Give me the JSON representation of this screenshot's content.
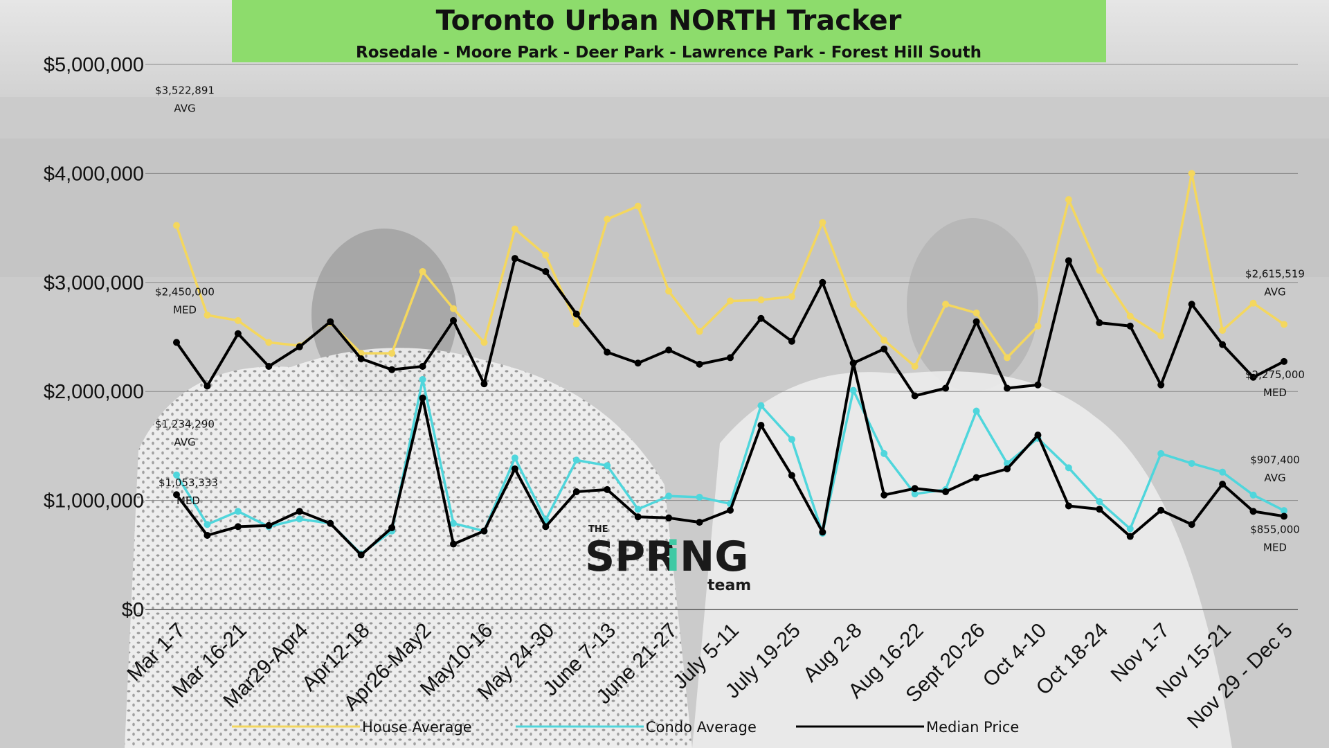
{
  "colors": {
    "house": "#f4d75e",
    "condo": "#4fd6dc",
    "median": "#000000",
    "title_bg": "#8ddc6c",
    "logo_accent": "#3fc9a4"
  },
  "logo": {
    "the": "THE",
    "spring_left": "SPR",
    "spring_i": "i",
    "spring_right": "NG",
    "team": "team"
  },
  "chart_data": {
    "type": "line",
    "title": "Toronto Urban NORTH Tracker",
    "subtitle": "Rosedale - Moore Park - Deer Park - Lawrence Park - Forest Hill South",
    "ylim": [
      0,
      5000000
    ],
    "yticks": [
      0,
      1000000,
      2000000,
      3000000,
      4000000,
      5000000
    ],
    "ytick_labels": [
      "$0",
      "$1,000,000",
      "$2,000,000",
      "$3,000,000",
      "$4,000,000",
      "$5,000,000"
    ],
    "x_tick_labels": [
      {
        "label": "Mar 1-7",
        "index": 0
      },
      {
        "label": "Mar 16-21",
        "index": 2
      },
      {
        "label": "Mar29-Apr4",
        "index": 4
      },
      {
        "label": "Apr12-18",
        "index": 6
      },
      {
        "label": "Apr26-May2",
        "index": 8
      },
      {
        "label": "May10-16",
        "index": 10
      },
      {
        "label": "May 24-30",
        "index": 12
      },
      {
        "label": "June 7-13",
        "index": 14
      },
      {
        "label": "June 21-27",
        "index": 16
      },
      {
        "label": "July 5-11",
        "index": 18
      },
      {
        "label": "July 19-25",
        "index": 20
      },
      {
        "label": "Aug 2-8",
        "index": 22
      },
      {
        "label": "Aug 16-22",
        "index": 24
      },
      {
        "label": "Sept 20-26",
        "index": 26
      },
      {
        "label": "Oct 4-10",
        "index": 28
      },
      {
        "label": "Oct 18-24",
        "index": 30
      },
      {
        "label": "Nov 1-7",
        "index": 32
      },
      {
        "label": "Nov 15-21",
        "index": 34
      },
      {
        "label": "Nov 29 - Dec 5",
        "index": 36
      }
    ],
    "series": [
      {
        "name": "House Average",
        "color": "#f4d75e",
        "values": [
          3522891,
          2700000,
          2650000,
          2450000,
          2420000,
          2630000,
          2350000,
          2350000,
          3100000,
          2760000,
          2450000,
          3490000,
          3250000,
          2620000,
          3580000,
          3700000,
          2920000,
          2550000,
          2830000,
          2840000,
          2870000,
          3550000,
          2800000,
          2470000,
          2230000,
          2800000,
          2720000,
          2310000,
          2600000,
          3760000,
          3110000,
          2690000,
          2510000,
          4000000,
          2560000,
          2810000,
          2615519
        ]
      },
      {
        "name": "Condo Average",
        "color": "#4fd6dc",
        "values": [
          1234290,
          780000,
          900000,
          760000,
          830000,
          790000,
          510000,
          720000,
          2110000,
          790000,
          720000,
          1390000,
          820000,
          1370000,
          1320000,
          920000,
          1040000,
          1030000,
          970000,
          1870000,
          1560000,
          700000,
          2010000,
          1430000,
          1060000,
          1100000,
          1820000,
          1340000,
          1570000,
          1300000,
          990000,
          740000,
          1430000,
          1340000,
          1260000,
          1050000,
          907400
        ]
      },
      {
        "name": "Median Price",
        "color": "#000000",
        "values": [
          2450000,
          2050000,
          2530000,
          2230000,
          2410000,
          2640000,
          2300000,
          2200000,
          2230000,
          2650000,
          2070000,
          3220000,
          3100000,
          2710000,
          2360000,
          2260000,
          2380000,
          2250000,
          2310000,
          2670000,
          2460000,
          3000000,
          2260000,
          2390000,
          1960000,
          2030000,
          2640000,
          2030000,
          2060000,
          3200000,
          2630000,
          2600000,
          2060000,
          2800000,
          2430000,
          2130000,
          2275000
        ]
      },
      {
        "name": "",
        "color": "#000000",
        "values": [
          1053333,
          680000,
          760000,
          770000,
          900000,
          790000,
          500000,
          750000,
          1940000,
          600000,
          720000,
          1290000,
          760000,
          1080000,
          1100000,
          850000,
          840000,
          800000,
          910000,
          1690000,
          1230000,
          710000,
          2260000,
          1050000,
          1110000,
          1080000,
          1210000,
          1290000,
          1600000,
          950000,
          920000,
          670000,
          910000,
          780000,
          1150000,
          900000,
          855000
        ]
      }
    ],
    "annotations": [
      {
        "lines": [
          "$3,522,891",
          "AVG"
        ],
        "series": 0,
        "index": 0,
        "side": "above"
      },
      {
        "lines": [
          "$2,450,000",
          "MED"
        ],
        "series": 2,
        "index": 0,
        "side": "above"
      },
      {
        "lines": [
          "$1,234,290",
          "AVG"
        ],
        "series": 1,
        "index": 0,
        "side": "above"
      },
      {
        "lines": [
          "$1,053,333",
          "MED"
        ],
        "series": 3,
        "index": 0,
        "side": "left"
      },
      {
        "lines": [
          "$2,615,519",
          "AVG"
        ],
        "series": 0,
        "index": 36,
        "side": "above"
      },
      {
        "lines": [
          "$2,275,000",
          "MED"
        ],
        "series": 2,
        "index": 36,
        "side": "below"
      },
      {
        "lines": [
          "$907,400",
          "AVG"
        ],
        "series": 1,
        "index": 36,
        "side": "above"
      },
      {
        "lines": [
          "$855,000",
          "MED"
        ],
        "series": 3,
        "index": 36,
        "side": "below"
      }
    ],
    "legend": [
      {
        "label": "House Average",
        "series": 0
      },
      {
        "label": "Condo Average",
        "series": 1
      },
      {
        "label": "Median Price",
        "series": 2
      }
    ],
    "legend_position": "bottom",
    "grid": true
  }
}
